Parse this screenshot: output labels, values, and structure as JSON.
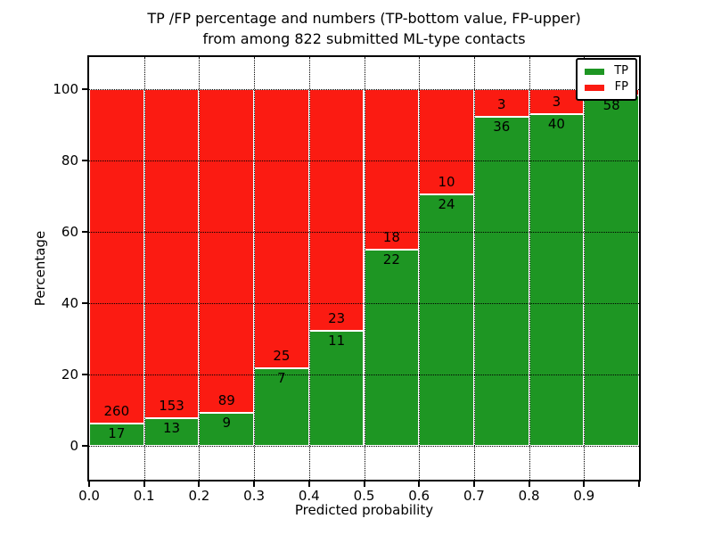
{
  "chart_data": {
    "type": "bar",
    "stacked": true,
    "normalized_to_percent": true,
    "title_line1": "TP /FP percentage and numbers (TP-bottom value, FP-upper)",
    "title_line2": "from among 822 submitted ML-type contacts",
    "total_contacts": 822,
    "xlabel": "Predicted probability",
    "ylabel": "Percentage",
    "categories": [
      "0.0",
      "0.1",
      "0.2",
      "0.3",
      "0.4",
      "0.5",
      "0.6",
      "0.7",
      "0.8",
      "0.9"
    ],
    "bin_width": 0.1,
    "series": [
      {
        "name": "TP",
        "color": "#1E9623",
        "values": [
          17,
          13,
          9,
          7,
          11,
          22,
          24,
          36,
          40,
          58
        ]
      },
      {
        "name": "FP",
        "color": "#FB1B12",
        "values": [
          260,
          153,
          89,
          25,
          23,
          18,
          10,
          3,
          3,
          1
        ]
      }
    ],
    "xtick_labels": [
      "0.0",
      "0.1",
      "0.2",
      "0.3",
      "0.4",
      "0.5",
      "0.6",
      "0.7",
      "0.8",
      "0.9"
    ],
    "yticks": [
      0,
      20,
      40,
      60,
      80,
      100
    ],
    "xlim": [
      0.0,
      1.0
    ],
    "ylim": [
      -10,
      110
    ],
    "grid": "dotted",
    "legend": {
      "position": "upper right",
      "entries": [
        {
          "label": "TP",
          "color": "#1E9623"
        },
        {
          "label": "FP",
          "color": "#FB1B12"
        }
      ]
    }
  }
}
